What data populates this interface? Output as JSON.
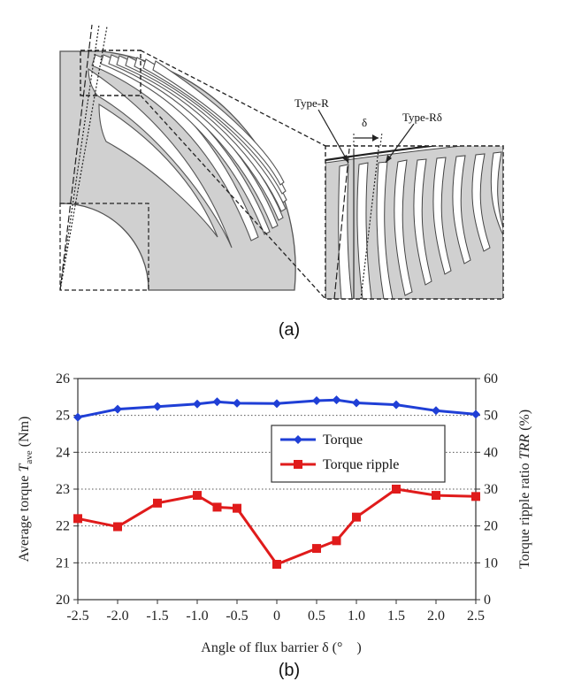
{
  "panel_a": {
    "caption": "(a)",
    "label_type_r": "Type-R",
    "label_type_rdelta": "Type-Rδ",
    "label_delta": "δ"
  },
  "panel_b": {
    "caption": "(b)"
  },
  "chart_data": {
    "type": "line",
    "title": "",
    "xlabel": "Angle of flux barrier δ (°　)",
    "ylabel_left_prefix": "Average torque ",
    "ylabel_left_italic": "T",
    "ylabel_left_sub": "ave",
    "ylabel_left_suffix": " (Nm)",
    "ylabel_right_prefix": "Torque ripple ratio ",
    "ylabel_right_italic": "TRR",
    "ylabel_right_suffix": " (%)",
    "x": [
      -2.5,
      -2.0,
      -1.5,
      -1.0,
      -0.75,
      -0.5,
      0,
      0.5,
      0.75,
      1.0,
      1.5,
      2.0,
      2.5
    ],
    "x_tick_labels": [
      "-2.5",
      "-2.0",
      "-1.5",
      "-1.0",
      "-0.5",
      "0",
      "0.5",
      "1.0",
      "1.5",
      "2.0",
      "2.5"
    ],
    "x_ticks": [
      -2.5,
      -2.0,
      -1.5,
      -1.0,
      -0.5,
      0,
      0.5,
      1.0,
      1.5,
      2.0,
      2.5
    ],
    "xlim": [
      -2.5,
      2.5
    ],
    "ylim_left": [
      20,
      26
    ],
    "ylim_right": [
      0,
      60
    ],
    "y_left_ticks": [
      "20",
      "21",
      "22",
      "23",
      "24",
      "25",
      "26"
    ],
    "y_right_ticks": [
      "0",
      "10",
      "20",
      "30",
      "40",
      "50",
      "60"
    ],
    "grid": "horizontal dotted",
    "legend_position": "center-right",
    "series": [
      {
        "name": "Torque",
        "axis": "left",
        "marker": "diamond",
        "color": "#1f3fd6",
        "values": [
          24.95,
          25.17,
          25.24,
          25.31,
          25.37,
          25.33,
          25.32,
          25.4,
          25.42,
          25.34,
          25.29,
          25.13,
          25.03
        ]
      },
      {
        "name": "Torque ripple",
        "axis": "right",
        "marker": "square",
        "color": "#e01b1b",
        "values": [
          22.0,
          19.8,
          26.2,
          28.3,
          25.1,
          24.8,
          9.6,
          13.9,
          16.0,
          22.4,
          30.0,
          28.3,
          28.0
        ]
      }
    ]
  }
}
